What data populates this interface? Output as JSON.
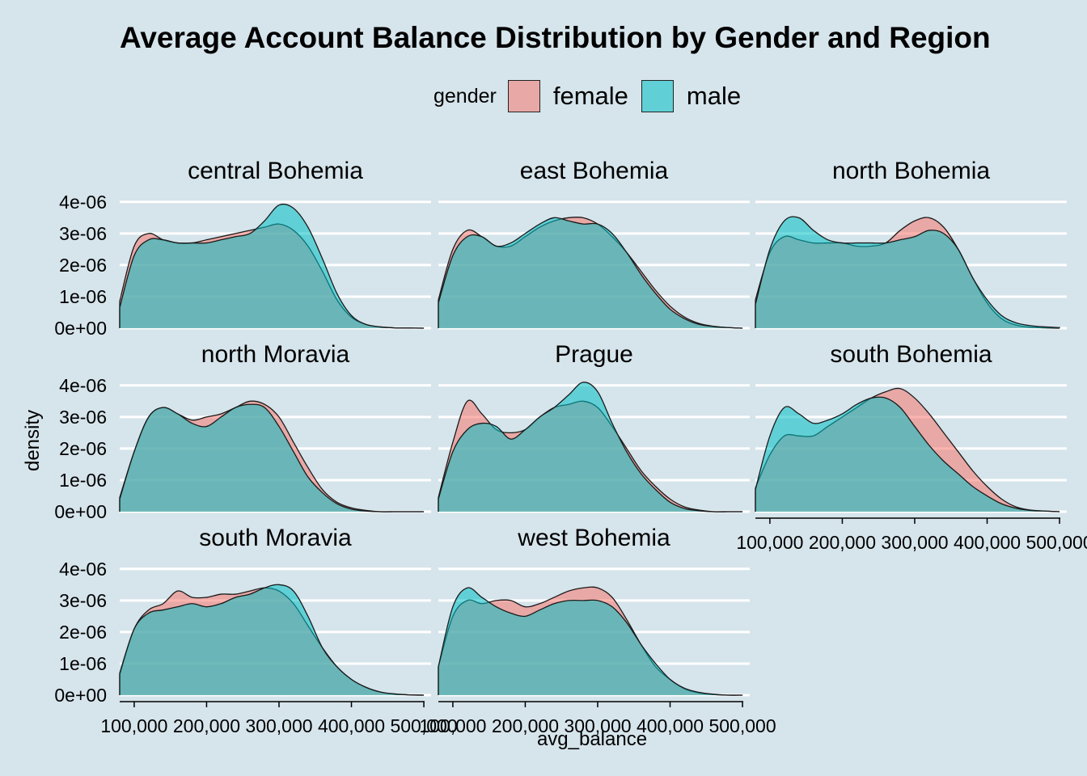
{
  "chart_data": {
    "type": "area",
    "title": "Average Account Balance Distribution by Gender and Region",
    "xlabel": "avg_balance",
    "ylabel": "density",
    "legend": {
      "title": "gender",
      "position": "top",
      "entries": [
        {
          "name": "female",
          "color": "#f8766d"
        },
        {
          "name": "male",
          "color": "#00bfc4"
        }
      ]
    },
    "xlim": [
      80000,
      510000
    ],
    "ylim": [
      0,
      4.2e-06
    ],
    "x_ticks": [
      100000,
      200000,
      300000,
      400000,
      500000
    ],
    "x_tick_labels": [
      "100,000",
      "200,000",
      "300,000",
      "400,000",
      "500,000"
    ],
    "y_ticks": [
      0,
      1e-06,
      2e-06,
      3e-06,
      4e-06
    ],
    "y_tick_labels": [
      "0e+00",
      "1e-06",
      "2e-06",
      "3e-06",
      "4e-06"
    ],
    "grid": "horizontal major",
    "fill_alpha": 0.55,
    "x": [
      80000,
      100000,
      120000,
      140000,
      160000,
      180000,
      200000,
      220000,
      240000,
      260000,
      280000,
      300000,
      320000,
      340000,
      360000,
      380000,
      400000,
      420000,
      440000,
      460000,
      480000,
      500000
    ],
    "panels": [
      {
        "name": "central Bohemia",
        "series": [
          {
            "name": "female",
            "values": [
              8.5e-07,
              2.6e-06,
              3e-06,
              2.8e-06,
              2.7e-06,
              2.7e-06,
              2.8e-06,
              2.9e-06,
              3e-06,
              3.1e-06,
              3.2e-06,
              3.3e-06,
              3.1e-06,
              2.6e-06,
              1.8e-06,
              9e-07,
              3.5e-07,
              1.2e-07,
              4e-08,
              1e-08,
              5e-09,
              0.0
            ]
          },
          {
            "name": "male",
            "values": [
              6.5e-07,
              2.3e-06,
              2.8e-06,
              2.8e-06,
              2.7e-06,
              2.7e-06,
              2.7e-06,
              2.8e-06,
              2.9e-06,
              3e-06,
              3.4e-06,
              3.9e-06,
              3.8e-06,
              3.2e-06,
              2.2e-06,
              1.1e-06,
              4e-07,
              1.2e-07,
              4e-08,
              1e-08,
              5e-09,
              0.0
            ]
          }
        ]
      },
      {
        "name": "east Bohemia",
        "series": [
          {
            "name": "female",
            "values": [
              9e-07,
              2.5e-06,
              3.1e-06,
              2.9e-06,
              2.6e-06,
              2.6e-06,
              2.9e-06,
              3.2e-06,
              3.4e-06,
              3.5e-06,
              3.5e-06,
              3.3e-06,
              2.9e-06,
              2.4e-06,
              1.8e-06,
              1.2e-06,
              7e-07,
              3.5e-07,
              1.5e-07,
              6e-08,
              2e-08,
              0.0
            ]
          },
          {
            "name": "male",
            "values": [
              8e-07,
              2.3e-06,
              2.9e-06,
              2.9e-06,
              2.6e-06,
              2.7e-06,
              3e-06,
              3.3e-06,
              3.5e-06,
              3.4e-06,
              3.3e-06,
              3.3e-06,
              3e-06,
              2.4e-06,
              1.7e-06,
              1.1e-06,
              6e-07,
              3e-07,
              1.2e-07,
              5e-08,
              2e-08,
              0.0
            ]
          }
        ]
      },
      {
        "name": "north Bohemia",
        "series": [
          {
            "name": "female",
            "values": [
              9e-07,
              2.4e-06,
              2.9e-06,
              2.8e-06,
              2.7e-06,
              2.7e-06,
              2.7e-06,
              2.6e-06,
              2.6e-06,
              2.7e-06,
              3.1e-06,
              3.4e-06,
              3.5e-06,
              3.2e-06,
              2.5e-06,
              1.6e-06,
              8e-07,
              3e-07,
              1e-07,
              3e-08,
              1e-08,
              0.0
            ]
          },
          {
            "name": "male",
            "values": [
              7.5e-07,
              2.5e-06,
              3.4e-06,
              3.5e-06,
              3.1e-06,
              2.8e-06,
              2.7e-06,
              2.7e-06,
              2.7e-06,
              2.7e-06,
              2.8e-06,
              2.9e-06,
              3.1e-06,
              3e-06,
              2.5e-06,
              1.6e-06,
              9e-07,
              4e-07,
              1.7e-07,
              8e-08,
              4e-08,
              2e-08
            ]
          }
        ]
      },
      {
        "name": "north Moravia",
        "series": [
          {
            "name": "female",
            "values": [
              4.5e-07,
              1.9e-06,
              3e-06,
              3.3e-06,
              3.1e-06,
              2.9e-06,
              3e-06,
              3.1e-06,
              3.3e-06,
              3.5e-06,
              3.4e-06,
              3e-06,
              2.2e-06,
              1.4e-06,
              7e-07,
              3e-07,
              1.2e-07,
              4e-08,
              0.0,
              0.0,
              0.0,
              0.0
            ]
          },
          {
            "name": "male",
            "values": [
              4e-07,
              1.9e-06,
              3e-06,
              3.3e-06,
              3.1e-06,
              2.8e-06,
              2.7e-06,
              3e-06,
              3.3e-06,
              3.4e-06,
              3.3e-06,
              2.7e-06,
              1.9e-06,
              1.1e-06,
              6e-07,
              2.5e-07,
              8e-08,
              2e-08,
              0.0,
              0.0,
              0.0,
              0.0
            ]
          }
        ]
      },
      {
        "name": "Prague",
        "series": [
          {
            "name": "female",
            "values": [
              4.5e-07,
              2.2e-06,
              3.5e-06,
              3.1e-06,
              2.6e-06,
              2.5e-06,
              2.6e-06,
              3e-06,
              3.3e-06,
              3.4e-06,
              3.5e-06,
              3.3e-06,
              2.7e-06,
              2e-06,
              1.3e-06,
              8e-07,
              4e-07,
              1.5e-07,
              5e-08,
              0.0,
              0.0,
              0.0
            ]
          },
          {
            "name": "male",
            "values": [
              4e-07,
              1.9e-06,
              2.6e-06,
              2.8e-06,
              2.7e-06,
              2.3e-06,
              2.6e-06,
              3e-06,
              3.3e-06,
              3.7e-06,
              4.1e-06,
              3.8e-06,
              2.8e-06,
              1.9e-06,
              1.2e-06,
              7e-07,
              3e-07,
              1e-07,
              3e-08,
              0.0,
              0.0,
              0.0
            ]
          }
        ]
      },
      {
        "name": "south Bohemia",
        "series": [
          {
            "name": "female",
            "values": [
              7.5e-07,
              1.8e-06,
              2.4e-06,
              2.4e-06,
              2.4e-06,
              2.7e-06,
              3e-06,
              3.3e-06,
              3.6e-06,
              3.8e-06,
              3.9e-06,
              3.6e-06,
              3.1e-06,
              2.5e-06,
              1.9e-06,
              1.3e-06,
              8e-07,
              4e-07,
              1.5e-07,
              5e-08,
              2e-08,
              0.0
            ]
          },
          {
            "name": "male",
            "values": [
              7e-07,
              2.4e-06,
              3.3e-06,
              3.1e-06,
              2.8e-06,
              2.9e-06,
              3.1e-06,
              3.4e-06,
              3.6e-06,
              3.6e-06,
              3.3e-06,
              2.7e-06,
              2.1e-06,
              1.6e-06,
              1.2e-06,
              8e-07,
              5e-07,
              2.5e-07,
              1.1e-07,
              4e-08,
              2e-08,
              0.0
            ]
          }
        ]
      },
      {
        "name": "south Moravia",
        "series": [
          {
            "name": "female",
            "values": [
              6.5e-07,
              2.1e-06,
              2.7e-06,
              2.9e-06,
              3.3e-06,
              3.1e-06,
              3.1e-06,
              3.2e-06,
              3.2e-06,
              3.3e-06,
              3.4e-06,
              3.3e-06,
              2.9e-06,
              2.2e-06,
              1.5e-06,
              9e-07,
              5e-07,
              2.5e-07,
              1e-07,
              3e-08,
              1e-08,
              0.0
            ]
          },
          {
            "name": "male",
            "values": [
              7e-07,
              2.1e-06,
              2.6e-06,
              2.7e-06,
              2.8e-06,
              2.9e-06,
              2.8e-06,
              2.9e-06,
              3.1e-06,
              3.2e-06,
              3.4e-06,
              3.5e-06,
              3.3e-06,
              2.5e-06,
              1.5e-06,
              9e-07,
              5e-07,
              2.5e-07,
              1e-07,
              4e-08,
              1e-08,
              0.0
            ]
          }
        ]
      },
      {
        "name": "west Bohemia",
        "series": [
          {
            "name": "female",
            "values": [
              9e-07,
              2.5e-06,
              3e-06,
              2.9e-06,
              3e-06,
              3e-06,
              2.8e-06,
              2.9e-06,
              3.1e-06,
              3.3e-06,
              3.4e-06,
              3.4e-06,
              3.1e-06,
              2.4e-06,
              1.6e-06,
              9e-07,
              5e-07,
              2e-07,
              7e-08,
              2e-08,
              0.0,
              0.0
            ]
          },
          {
            "name": "male",
            "values": [
              9e-07,
              2.8e-06,
              3.4e-06,
              3.1e-06,
              2.8e-06,
              2.6e-06,
              2.5e-06,
              2.7e-06,
              2.9e-06,
              3e-06,
              3e-06,
              3e-06,
              2.8e-06,
              2.3e-06,
              1.6e-06,
              1e-06,
              5e-07,
              2.2e-07,
              9e-08,
              3e-08,
              0.0,
              0.0
            ]
          }
        ]
      }
    ]
  }
}
